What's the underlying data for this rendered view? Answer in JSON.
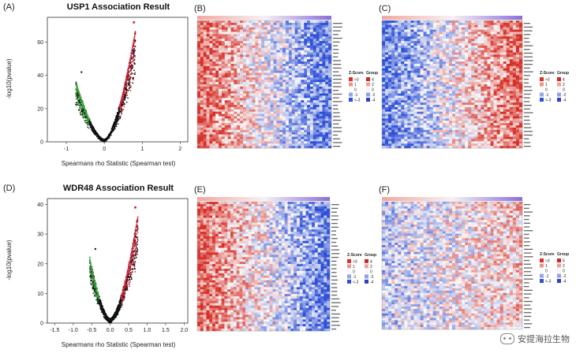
{
  "panels": {
    "A": "(A)",
    "B": "(B)",
    "C": "(C)",
    "D": "(D)",
    "E": "(E)",
    "F": "(F)"
  },
  "colors": {
    "red": "#d7263d",
    "blue": "#2a4fd6",
    "green": "#3aa83a",
    "black": "#111111",
    "bar_left": "#f2a7a0",
    "bar_right": "#8a6fd8"
  },
  "chart_data": [
    {
      "type": "scatter",
      "id": "volcano-usp1",
      "title": "USP1 Association Result",
      "xlabel": "Spearmans rho Statistic (Spearman test)",
      "ylabel": "-log10(pvalue)",
      "xlim": [
        -1.5,
        2.2
      ],
      "ylim": [
        0,
        75
      ],
      "xticks": [
        "-1",
        "0",
        "1",
        "2"
      ],
      "xtick_values": [
        -1,
        0,
        1,
        2
      ],
      "yticks": [
        "0",
        "20",
        "40",
        "60"
      ],
      "ytick_values": [
        0,
        20,
        40,
        60
      ],
      "x_extent": [
        -0.75,
        0.82
      ],
      "top_point": {
        "x": 0.78,
        "y": 72
      },
      "left_outlier": {
        "x": -0.6,
        "y": 42
      },
      "series": [
        {
          "color": "green",
          "x_range": [
            -0.75,
            -0.4
          ]
        },
        {
          "color": "black",
          "x_range": [
            -0.4,
            0.4
          ]
        },
        {
          "color": "red",
          "x_range": [
            0.4,
            0.82
          ]
        }
      ]
    },
    {
      "type": "scatter",
      "id": "volcano-wdr48",
      "title": "WDR48 Association Result",
      "xlabel": "Spearmans rho Statistic (Spearman test)",
      "ylabel": "-log10(pvalue)",
      "xlim": [
        -1.7,
        2.1
      ],
      "ylim": [
        0,
        42
      ],
      "xticks": [
        "-1.5",
        "-1.0",
        "-0.5",
        "0.0",
        "0.5",
        "1.0",
        "1.5",
        "2.0"
      ],
      "xtick_values": [
        -1.5,
        -1.0,
        -0.5,
        0.0,
        0.5,
        1.0,
        1.5,
        2.0
      ],
      "yticks": [
        "0",
        "10",
        "20",
        "30",
        "40"
      ],
      "ytick_values": [
        0,
        10,
        20,
        30,
        40
      ],
      "x_extent": [
        -0.55,
        0.75
      ],
      "top_point": {
        "x": 0.68,
        "y": 39
      },
      "left_outlier": {
        "x": -0.4,
        "y": 25
      },
      "series": [
        {
          "color": "green",
          "x_range": [
            -0.55,
            -0.3
          ]
        },
        {
          "color": "black",
          "x_range": [
            -0.3,
            0.3
          ]
        },
        {
          "color": "red",
          "x_range": [
            0.3,
            0.75
          ]
        }
      ]
    },
    {
      "type": "heatmap",
      "id": "heatmap-b",
      "pattern": "red-left",
      "legend": {
        "zscore_title": "Z-Score",
        "group_title": "Group",
        "zscore_labels": [
          ">3",
          "1",
          "0",
          "-1",
          "<-3"
        ],
        "group_labels": [
          "4",
          "2",
          "0",
          "-2",
          "-4"
        ]
      }
    },
    {
      "type": "heatmap",
      "id": "heatmap-c",
      "pattern": "blue-left",
      "legend": {
        "zscore_title": "Z-Score",
        "group_title": "Group",
        "zscore_labels": [
          ">3",
          "1",
          "0",
          "-1",
          "<-3"
        ],
        "group_labels": [
          "4",
          "2",
          "0",
          "-2",
          "-4"
        ]
      }
    },
    {
      "type": "heatmap",
      "id": "heatmap-e",
      "pattern": "red-left",
      "legend": {
        "zscore_title": "Z-Score",
        "group_title": "Group",
        "zscore_labels": [
          ">3",
          "1",
          "0",
          "-1",
          "<-3"
        ],
        "group_labels": [
          "4",
          "2",
          "0",
          "-2",
          "-4"
        ]
      }
    },
    {
      "type": "heatmap",
      "id": "heatmap-f",
      "pattern": "mixed",
      "legend": {
        "zscore_title": "Z-Score",
        "group_title": "Group",
        "zscore_labels": [
          ">3",
          "1",
          "0",
          "-1",
          "<-3"
        ],
        "group_labels": [
          "6",
          "2",
          "0",
          "-2",
          "-4"
        ]
      }
    }
  ],
  "watermark": "安提海拉生物"
}
